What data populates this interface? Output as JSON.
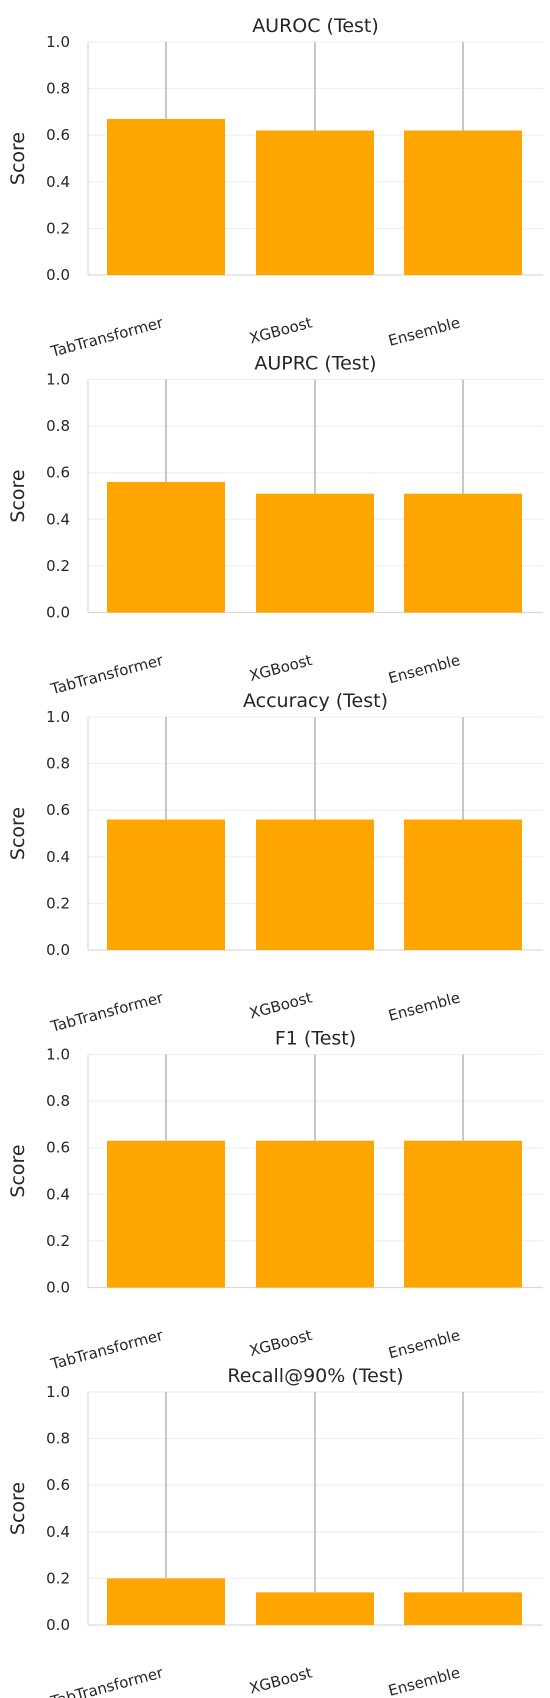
{
  "chart_data": [
    {
      "type": "bar",
      "title": "AUROC (Test)",
      "ylabel": "Score",
      "categories": [
        "TabTransformer",
        "XGBoost",
        "Ensemble"
      ],
      "values": [
        0.67,
        0.62,
        0.62
      ],
      "ylim": [
        0,
        1
      ],
      "yticks": [
        "0.0",
        "0.2",
        "0.4",
        "0.6",
        "0.8",
        "1.0"
      ]
    },
    {
      "type": "bar",
      "title": "AUPRC (Test)",
      "ylabel": "Score",
      "categories": [
        "TabTransformer",
        "XGBoost",
        "Ensemble"
      ],
      "values": [
        0.56,
        0.51,
        0.51
      ],
      "ylim": [
        0,
        1
      ],
      "yticks": [
        "0.0",
        "0.2",
        "0.4",
        "0.6",
        "0.8",
        "1.0"
      ]
    },
    {
      "type": "bar",
      "title": "Accuracy (Test)",
      "ylabel": "Score",
      "categories": [
        "TabTransformer",
        "XGBoost",
        "Ensemble"
      ],
      "values": [
        0.56,
        0.56,
        0.56
      ],
      "ylim": [
        0,
        1
      ],
      "yticks": [
        "0.0",
        "0.2",
        "0.4",
        "0.6",
        "0.8",
        "1.0"
      ]
    },
    {
      "type": "bar",
      "title": "F1 (Test)",
      "ylabel": "Score",
      "categories": [
        "TabTransformer",
        "XGBoost",
        "Ensemble"
      ],
      "values": [
        0.63,
        0.63,
        0.63
      ],
      "ylim": [
        0,
        1
      ],
      "yticks": [
        "0.0",
        "0.2",
        "0.4",
        "0.6",
        "0.8",
        "1.0"
      ]
    },
    {
      "type": "bar",
      "title": "Recall@90% (Test)",
      "ylabel": "Score",
      "categories": [
        "TabTransformer",
        "XGBoost",
        "Ensemble"
      ],
      "values": [
        0.2,
        0.14,
        0.14
      ],
      "ylim": [
        0,
        1
      ],
      "yticks": [
        "0.0",
        "0.2",
        "0.4",
        "0.6",
        "0.8",
        "1.0"
      ]
    }
  ],
  "colors": {
    "bar": "#FFA500",
    "errorbar": "#c8c8c8",
    "grid": "#eeeeee",
    "axis": "#d9d9d9",
    "text": "#262626"
  }
}
